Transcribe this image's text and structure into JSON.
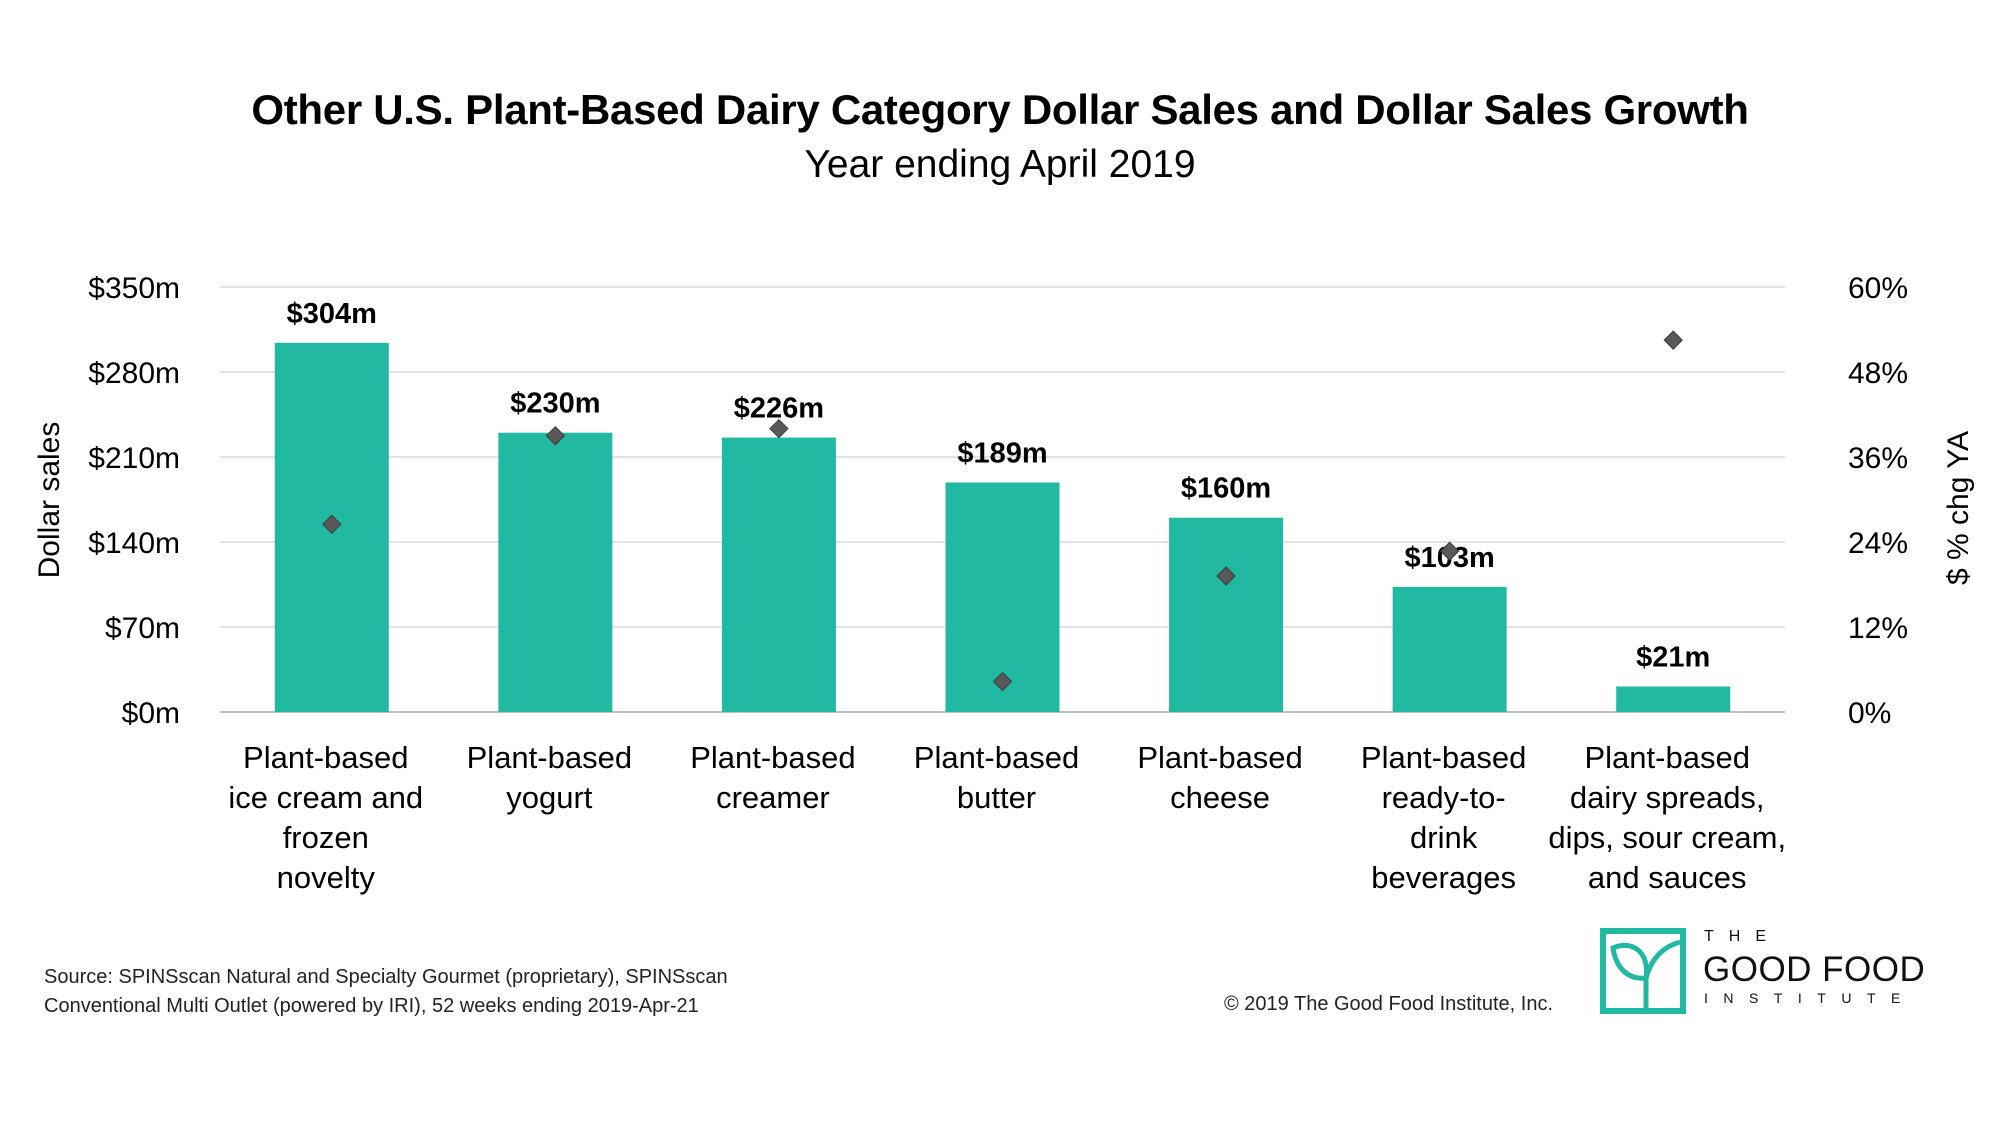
{
  "title": "Other U.S. Plant-Based Dairy Category Dollar Sales and Dollar Sales Growth",
  "subtitle": "Year ending April 2019",
  "source_lines": [
    "Source: SPINSscan Natural and Specialty Gourmet (proprietary), SPINSscan",
    "Conventional Multi Outlet (powered by IRI), 52 weeks ending 2019-Apr-21"
  ],
  "copyright": "© 2019 The Good Food Institute, Inc.",
  "logo": {
    "the": "THE",
    "main": "GOOD FOOD",
    "institute": "INSTITUTE"
  },
  "colors": {
    "bar": "#22b9a2",
    "marker": "#595959",
    "grid": "#d9d9d9",
    "logo": "#22b9a2"
  },
  "chart_data": {
    "type": "bar",
    "categories": [
      [
        "Plant-based",
        "ice cream and",
        "frozen",
        "novelty"
      ],
      [
        "Plant-based",
        "yogurt"
      ],
      [
        "Plant-based",
        "creamer"
      ],
      [
        "Plant-based",
        "butter"
      ],
      [
        "Plant-based",
        "cheese"
      ],
      [
        "Plant-based",
        "ready-to-",
        "drink",
        "beverages"
      ],
      [
        "Plant-based",
        "dairy spreads,",
        "dips, sour cream,",
        "and sauces"
      ]
    ],
    "series": [
      {
        "kind": "bar",
        "axis": "left",
        "values": [
          304,
          230,
          226,
          189,
          160,
          103,
          21
        ],
        "data_labels": [
          "$304m",
          "$230m",
          "$226m",
          "$189m",
          "$160m",
          "$103m",
          "$21m"
        ]
      },
      {
        "kind": "marker",
        "axis": "right",
        "values": [
          26.5,
          39,
          40,
          4.3,
          19.2,
          22.7,
          52.5
        ]
      }
    ],
    "ylabel": "Dollar sales",
    "ylim": [
      0,
      350
    ],
    "yticks": [
      "$0m",
      "$70m",
      "$140m",
      "$210m",
      "$280m",
      "$350m"
    ],
    "y2label": "$ % chg YA",
    "y2lim": [
      0,
      60
    ],
    "y2ticks": [
      "0%",
      "12%",
      "24%",
      "36%",
      "48%",
      "60%"
    ],
    "grid": true
  }
}
